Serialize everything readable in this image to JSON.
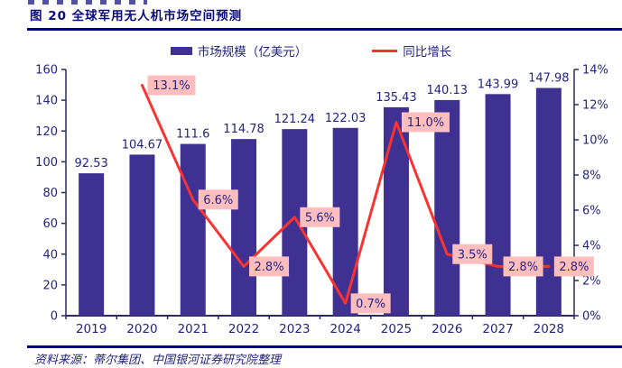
{
  "page": {
    "title": "图 20 全球军用无人机市场空间预测",
    "source": "资料来源：蒂尔集团、中国银河证券研究院整理"
  },
  "legend": {
    "bar_label": "市场规模（亿美元）",
    "line_label": "同比增长"
  },
  "colors": {
    "bar": "#3E3192",
    "line": "#FA3232",
    "label_bg": "#FFBEBE",
    "text": "#232384",
    "axis": "#2B2B5E",
    "rule": "#00008B"
  },
  "chart_data": {
    "type": "bar",
    "categories": [
      "2019",
      "2020",
      "2021",
      "2022",
      "2023",
      "2024",
      "2025",
      "2026",
      "2027",
      "2028"
    ],
    "series": [
      {
        "name": "市场规模（亿美元）",
        "type": "bar",
        "axis": "left",
        "values": [
          92.53,
          104.67,
          111.6,
          114.78,
          121.24,
          122.03,
          135.43,
          140.13,
          143.99,
          147.98
        ],
        "value_labels": [
          "92.53",
          "104.67",
          "111.6",
          "114.78",
          "121.24",
          "122.03",
          "135.43",
          "140.13",
          "143.99",
          "147.98"
        ]
      },
      {
        "name": "同比增长",
        "type": "line",
        "axis": "right",
        "values": [
          null,
          13.1,
          6.6,
          2.8,
          5.6,
          0.7,
          11.0,
          3.5,
          2.8,
          2.8
        ],
        "value_labels": [
          null,
          "13.1%",
          "6.6%",
          "2.8%",
          "5.6%",
          "0.7%",
          "11.0%",
          "3.5%",
          "2.8%",
          "2.8%"
        ]
      }
    ],
    "left_axis": {
      "min": 0,
      "max": 160,
      "step": 20,
      "ticks": [
        "0",
        "20",
        "40",
        "60",
        "80",
        "100",
        "120",
        "140",
        "160"
      ]
    },
    "right_axis": {
      "min": 0,
      "max": 14,
      "step": 2,
      "ticks": [
        "0%",
        "2%",
        "4%",
        "6%",
        "8%",
        "10%",
        "12%",
        "14%"
      ]
    },
    "grid": false,
    "legend_position": "top"
  }
}
